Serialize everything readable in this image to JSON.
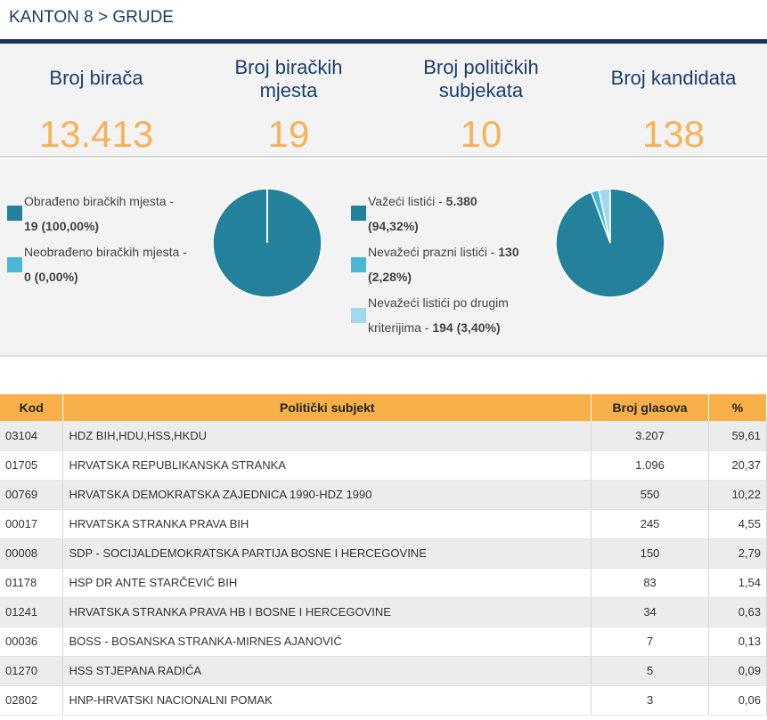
{
  "breadcrumb": {
    "region": "KANTON 8",
    "separator": ">",
    "municipality": "GRUDE"
  },
  "stats": [
    {
      "label_line1": "Broj birača",
      "label_line2": "",
      "value": "13.413"
    },
    {
      "label_line1": "Broj biračkih",
      "label_line2": "mjesta",
      "value": "19"
    },
    {
      "label_line1": "Broj političkih",
      "label_line2": "subjekata",
      "value": "10"
    },
    {
      "label_line1": "Broj kandidata",
      "label_line2": "",
      "value": "138"
    }
  ],
  "colors": {
    "dark": "#23819c",
    "mid": "#4bb7d6",
    "light": "#a3d9ec",
    "accent": "#f5b25a",
    "navy": "#1a3d6b"
  },
  "polling_legend": [
    {
      "line1": "Obrađeno biračkih mjesta -",
      "line2_bold": "19 (100,00%)",
      "line2_rest": ""
    },
    {
      "line1": "Neobrađeno biračkih mjesta -",
      "line2_bold": "0 (0,00%)",
      "line2_rest": ""
    }
  ],
  "ballot_legend": [
    {
      "line1_text": "Važeći listići - ",
      "line1_bold": "5.380",
      "line2_text": "",
      "line2_bold": "(94,32%)"
    },
    {
      "line1_text": "Nevažeći prazni listići - ",
      "line1_bold": "130",
      "line2_text": "",
      "line2_bold": "(2,28%)"
    },
    {
      "line1_text": "Nevažeći listići po drugim",
      "line1_bold": "",
      "line2_text": "kriterijima - ",
      "line2_bold": "194 (3,40%)"
    }
  ],
  "chart_data": [
    {
      "type": "pie",
      "categories": [
        "Obrađeno biračkih mjesta",
        "Neobrađeno biračkih mjesta"
      ],
      "values": [
        19,
        0
      ],
      "percent": [
        100.0,
        0.0
      ]
    },
    {
      "type": "pie",
      "categories": [
        "Važeći listići",
        "Nevažeći prazni listići",
        "Nevažeći listići po drugim kriterijima"
      ],
      "values": [
        5380,
        130,
        194
      ],
      "percent": [
        94.32,
        2.28,
        3.4
      ]
    }
  ],
  "table": {
    "headers": {
      "code": "Kod",
      "party": "Politički subjekt",
      "votes": "Broj glasova",
      "pct": "%"
    },
    "rows": [
      {
        "code": "03104",
        "party": "HDZ BIH,HDU,HSS,HKDU",
        "votes": "3.207",
        "pct": "59,61"
      },
      {
        "code": "01705",
        "party": "HRVATSKA REPUBLIKANSKA STRANKA",
        "votes": "1.096",
        "pct": "20,37"
      },
      {
        "code": "00769",
        "party": "HRVATSKA DEMOKRATSKA ZAJEDNICA 1990-HDZ 1990",
        "votes": "550",
        "pct": "10,22"
      },
      {
        "code": "00017",
        "party": "HRVATSKA STRANKA PRAVA BIH",
        "votes": "245",
        "pct": "4,55"
      },
      {
        "code": "00008",
        "party": "SDP - SOCIJALDEMOKRATSKA PARTIJA BOSNE I HERCEGOVINE",
        "votes": "150",
        "pct": "2,79"
      },
      {
        "code": "01178",
        "party": "HSP DR ANTE STARČEVIĆ BIH",
        "votes": "83",
        "pct": "1,54"
      },
      {
        "code": "01241",
        "party": "HRVATSKA STRANKA PRAVA HB I BOSNE I HERCEGOVINE",
        "votes": "34",
        "pct": "0,63"
      },
      {
        "code": "00036",
        "party": "BOSS - BOSANSKA STRANKA-MIRNES AJANOVIĆ",
        "votes": "7",
        "pct": "0,13"
      },
      {
        "code": "01270",
        "party": "HSS STJEPANA RADIĆA",
        "votes": "5",
        "pct": "0,09"
      },
      {
        "code": "02802",
        "party": "HNP-HRVATSKI NACIONALNI POMAK",
        "votes": "3",
        "pct": "0,06"
      }
    ]
  }
}
